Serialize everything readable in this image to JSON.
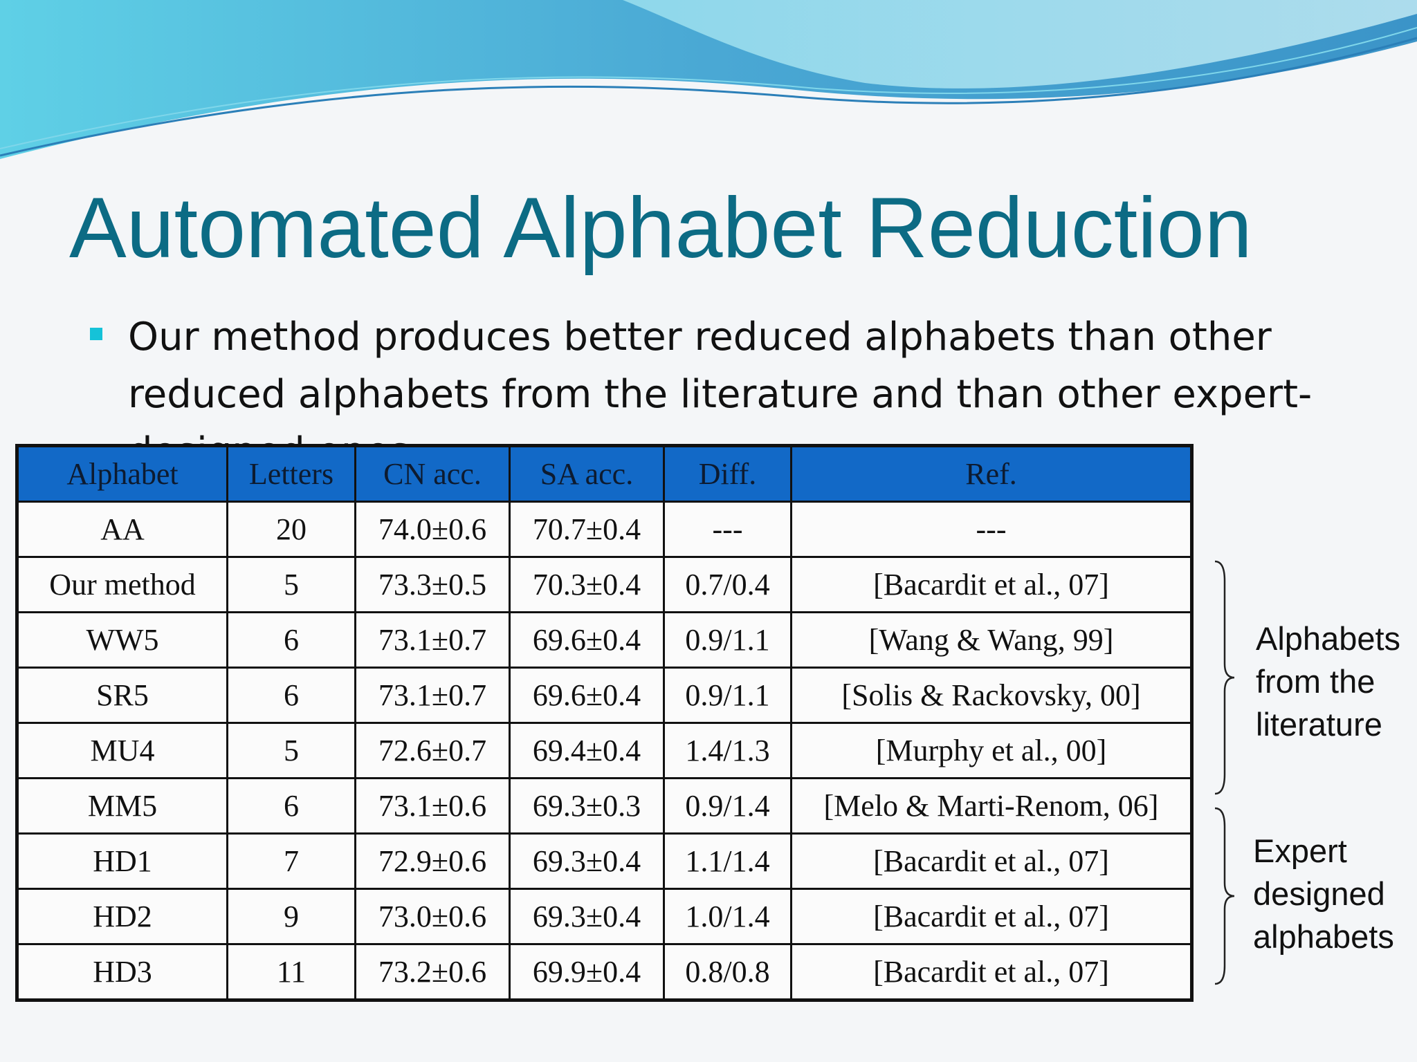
{
  "title": "Automated Alphabet Reduction",
  "bullet": {
    "text": "Our method produces better reduced alphabets than other reduced alphabets from the literature and than other expert-designed ones"
  },
  "table": {
    "headers": [
      "Alphabet",
      "Letters",
      "CN acc.",
      "SA acc.",
      "Diff.",
      "Ref."
    ],
    "rows": [
      [
        "AA",
        "20",
        "74.0±0.6",
        "70.7±0.4",
        "---",
        "---"
      ],
      [
        "Our method",
        "5",
        "73.3±0.5",
        "70.3±0.4",
        "0.7/0.4",
        "[Bacardit et al., 07]"
      ],
      [
        "WW5",
        "6",
        "73.1±0.7",
        "69.6±0.4",
        "0.9/1.1",
        "[Wang & Wang, 99]"
      ],
      [
        "SR5",
        "6",
        "73.1±0.7",
        "69.6±0.4",
        "0.9/1.1",
        "[Solis & Rackovsky, 00]"
      ],
      [
        "MU4",
        "5",
        "72.6±0.7",
        "69.4±0.4",
        "1.4/1.3",
        "[Murphy et al., 00]"
      ],
      [
        "MM5",
        "6",
        "73.1±0.6",
        "69.3±0.3",
        "0.9/1.4",
        "[Melo & Marti-Renom, 06]"
      ],
      [
        "HD1",
        "7",
        "72.9±0.6",
        "69.3±0.4",
        "1.1/1.4",
        "[Bacardit et al., 07]"
      ],
      [
        "HD2",
        "9",
        "73.0±0.6",
        "69.3±0.4",
        "1.0/1.4",
        "[Bacardit et al., 07]"
      ],
      [
        "HD3",
        "11",
        "73.2±0.6",
        "69.9±0.4",
        "0.8/0.8",
        "[Bacardit et al., 07]"
      ]
    ]
  },
  "annotations": {
    "literature": "Alphabets\nfrom the\nliterature",
    "expert": "Expert\ndesigned\nalphabets"
  },
  "colors": {
    "title": "#0c6b84",
    "bullet": "#15c2d8",
    "header_bg": "#1269c7"
  }
}
